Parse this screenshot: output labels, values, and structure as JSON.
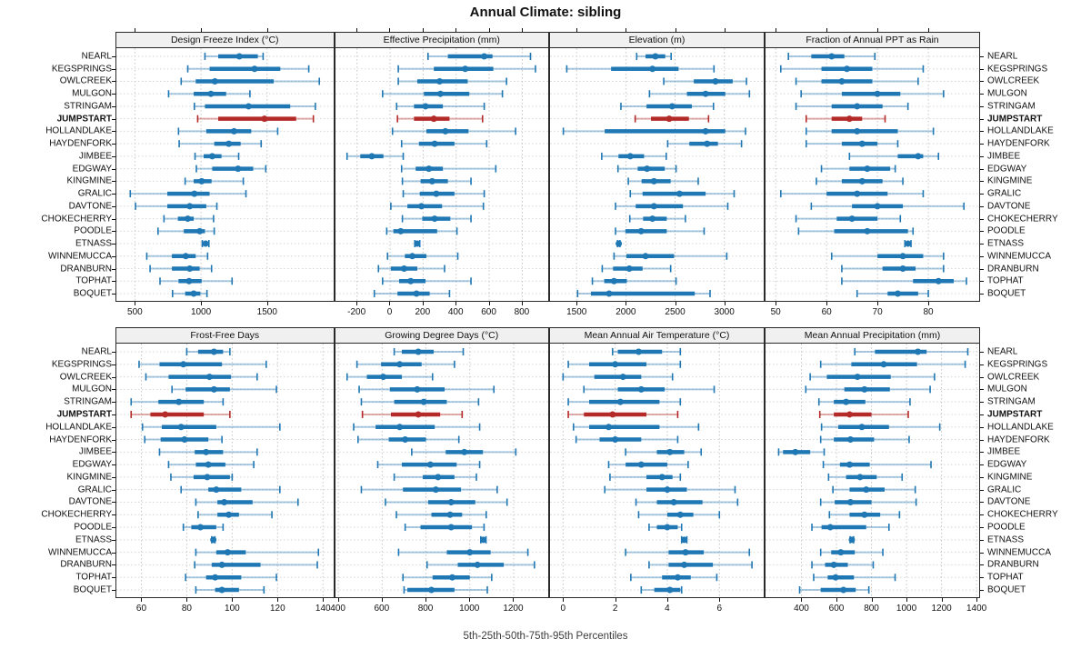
{
  "title": "Annual Climate: sibling",
  "footer": "5th-25th-50th-75th-95th Percentiles",
  "highlight_site": "JUMPSTART",
  "sites": [
    "NEARL",
    "KEGSPRINGS",
    "OWLCREEK",
    "MULGON",
    "STRINGAM",
    "JUMPSTART",
    "HOLLANDLAKE",
    "HAYDENFORK",
    "JIMBEE",
    "EDGWAY",
    "KINGMINE",
    "GRALIC",
    "DAVTONE",
    "CHOKECHERRY",
    "POODLE",
    "ETNASS",
    "WINNEMUCCA",
    "DRANBURN",
    "TOPHAT",
    "BOQUET"
  ],
  "colors": {
    "series": "#1f77b4",
    "series_light": "rgba(31,119,180,0.38)",
    "highlight": "#b32a28",
    "highlight_light": "rgba(179,42,40,0.38)",
    "grid": "#c6c6c6",
    "row_grid": "#d6d6d6",
    "header_bg": "#f0f0f0",
    "border": "#2a2a2a",
    "text": "#111111"
  },
  "chart_data": [
    {
      "type": "percentile-dotplot",
      "row": "top",
      "col": 0,
      "title": "Design Freeze Index (°C)",
      "xlim": [
        360,
        2000
      ],
      "ticks": [
        500,
        1000,
        1500
      ],
      "percentiles": [
        5,
        25,
        50,
        75,
        95
      ],
      "values": [
        [
          1030,
          1130,
          1290,
          1430,
          1470
        ],
        [
          900,
          1065,
          1405,
          1600,
          1815
        ],
        [
          850,
          960,
          1105,
          1550,
          1895
        ],
        [
          755,
          945,
          1075,
          1190,
          1370
        ],
        [
          950,
          1030,
          1360,
          1675,
          1865
        ],
        [
          975,
          1130,
          1480,
          1720,
          1850
        ],
        [
          830,
          1040,
          1250,
          1380,
          1580
        ],
        [
          835,
          1100,
          1210,
          1300,
          1455
        ],
        [
          955,
          1020,
          1085,
          1155,
          1285
        ],
        [
          965,
          1085,
          1280,
          1395,
          1490
        ],
        [
          880,
          945,
          1005,
          1080,
          1320
        ],
        [
          465,
          745,
          950,
          1065,
          1340
        ],
        [
          505,
          745,
          915,
          1040,
          1120
        ],
        [
          720,
          825,
          900,
          945,
          1095
        ],
        [
          675,
          870,
          990,
          1030,
          1100
        ],
        [
          1010,
          1025,
          1035,
          1045,
          1060
        ],
        [
          590,
          780,
          885,
          960,
          1050
        ],
        [
          615,
          780,
          915,
          990,
          1080
        ],
        [
          690,
          830,
          910,
          1005,
          1235
        ],
        [
          785,
          880,
          945,
          995,
          1045
        ]
      ]
    },
    {
      "type": "percentile-dotplot",
      "row": "top",
      "col": 1,
      "title": "Effective Precipitation (mm)",
      "xlim": [
        -330,
        960
      ],
      "ticks": [
        -200,
        0,
        200,
        400,
        600,
        800
      ],
      "percentiles": [
        5,
        25,
        50,
        75,
        95
      ],
      "values": [
        [
          230,
          350,
          570,
          620,
          850
        ],
        [
          50,
          265,
          455,
          625,
          880
        ],
        [
          50,
          165,
          300,
          470,
          705
        ],
        [
          -45,
          205,
          305,
          480,
          680
        ],
        [
          40,
          145,
          215,
          320,
          570
        ],
        [
          45,
          145,
          265,
          360,
          560
        ],
        [
          15,
          220,
          335,
          475,
          760
        ],
        [
          70,
          175,
          270,
          390,
          585
        ],
        [
          -260,
          -180,
          -110,
          -40,
          80
        ],
        [
          70,
          155,
          235,
          320,
          640
        ],
        [
          75,
          185,
          255,
          350,
          490
        ],
        [
          80,
          180,
          280,
          390,
          570
        ],
        [
          5,
          105,
          190,
          315,
          565
        ],
        [
          75,
          195,
          270,
          365,
          490
        ],
        [
          -20,
          20,
          65,
          285,
          405
        ],
        [
          150,
          158,
          164,
          170,
          180
        ],
        [
          -15,
          90,
          135,
          220,
          410
        ],
        [
          -70,
          5,
          85,
          165,
          330
        ],
        [
          -45,
          55,
          125,
          215,
          490
        ],
        [
          -95,
          45,
          160,
          240,
          360
        ]
      ]
    },
    {
      "type": "percentile-dotplot",
      "row": "top",
      "col": 2,
      "title": "Elevation (m)",
      "xlim": [
        1230,
        3400
      ],
      "ticks": [
        1500,
        2000,
        2500,
        3000
      ],
      "percentiles": [
        5,
        25,
        50,
        75,
        95
      ],
      "values": [
        [
          2110,
          2200,
          2300,
          2400,
          2460
        ],
        [
          1400,
          1850,
          2270,
          2535,
          2895
        ],
        [
          2385,
          2690,
          2910,
          3085,
          3225
        ],
        [
          2240,
          2620,
          2810,
          3010,
          3255
        ],
        [
          1950,
          2210,
          2470,
          2670,
          2890
        ],
        [
          2095,
          2255,
          2440,
          2640,
          2840
        ],
        [
          1365,
          1785,
          2810,
          3010,
          3215
        ],
        [
          2425,
          2645,
          2825,
          2935,
          3175
        ],
        [
          1755,
          1925,
          2045,
          2185,
          2410
        ],
        [
          1920,
          2120,
          2215,
          2395,
          2510
        ],
        [
          2025,
          2160,
          2285,
          2455,
          2735
        ],
        [
          2045,
          2170,
          2545,
          2810,
          3100
        ],
        [
          1895,
          2100,
          2285,
          2580,
          3035
        ],
        [
          2040,
          2175,
          2270,
          2415,
          2605
        ],
        [
          1895,
          1995,
          2155,
          2415,
          2795
        ],
        [
          1915,
          1922,
          1928,
          1934,
          1940
        ],
        [
          1880,
          2005,
          2200,
          2490,
          3025
        ],
        [
          1760,
          1870,
          2035,
          2170,
          2455
        ],
        [
          1660,
          1780,
          1880,
          2010,
          2510
        ],
        [
          1510,
          1645,
          1830,
          2700,
          2855
        ]
      ]
    },
    {
      "type": "percentile-dotplot",
      "row": "top",
      "col": 3,
      "title": "Fraction of Annual PPT as Rain",
      "xlim": [
        48,
        90
      ],
      "ticks": [
        50,
        60,
        70,
        80
      ],
      "percentiles": [
        5,
        25,
        50,
        75,
        95
      ],
      "values": [
        [
          52.5,
          57,
          61,
          63.5,
          69.5
        ],
        [
          51,
          59,
          64,
          69,
          79
        ],
        [
          54,
          59,
          63,
          69,
          78
        ],
        [
          55,
          63,
          70,
          74.5,
          83
        ],
        [
          54,
          61,
          66,
          71,
          76
        ],
        [
          56,
          61,
          64.5,
          67,
          71.5
        ],
        [
          56,
          61,
          66,
          74,
          81
        ],
        [
          56,
          63,
          67,
          70,
          74
        ],
        [
          64.5,
          74,
          78,
          79,
          82
        ],
        [
          59,
          64.5,
          68,
          72.5,
          73.5
        ],
        [
          58,
          63,
          67,
          71,
          75
        ],
        [
          51,
          60,
          66,
          72,
          79
        ],
        [
          57,
          65,
          70,
          75,
          87
        ],
        [
          54,
          62,
          65,
          70,
          74.5
        ],
        [
          54.5,
          61.5,
          68,
          76,
          77
        ],
        [
          75.4,
          75.7,
          76,
          76.3,
          76.6
        ],
        [
          61,
          70,
          75,
          79,
          83
        ],
        [
          63,
          71,
          75,
          77.5,
          83
        ],
        [
          63,
          77,
          82,
          85,
          87.5
        ],
        [
          66,
          72,
          74,
          78,
          80
        ]
      ]
    },
    {
      "type": "percentile-dotplot",
      "row": "bottom",
      "col": 0,
      "title": "Frost-Free Days",
      "xlim": [
        49,
        144.5
      ],
      "ticks": [
        60,
        80,
        100,
        120,
        140
      ],
      "percentiles": [
        5,
        25,
        50,
        75,
        95
      ],
      "values": [
        [
          80,
          85,
          92,
          96,
          99
        ],
        [
          59,
          68,
          78.5,
          95.5,
          115
        ],
        [
          62,
          72,
          90,
          99.5,
          111
        ],
        [
          73.5,
          79.5,
          92,
          99,
          119.5
        ],
        [
          55.5,
          67.5,
          76.5,
          87.5,
          96
        ],
        [
          55.5,
          64,
          70.5,
          87.5,
          99
        ],
        [
          60.5,
          69,
          77.5,
          93,
          121
        ],
        [
          61.5,
          68.5,
          79,
          89.5,
          95.5
        ],
        [
          68,
          83.5,
          88.5,
          96,
          111
        ],
        [
          72,
          84,
          89.5,
          97,
          109.5
        ],
        [
          73,
          83,
          89,
          99,
          100
        ],
        [
          77.5,
          89.5,
          93,
          104,
          121
        ],
        [
          84,
          93.5,
          96.5,
          109,
          129
        ],
        [
          85,
          93.5,
          98.5,
          103,
          117.5
        ],
        [
          78.5,
          82,
          86,
          93,
          96
        ],
        [
          91,
          91.4,
          91.7,
          92,
          92.4
        ],
        [
          84,
          93,
          98,
          106,
          138
        ],
        [
          83.5,
          91,
          95.5,
          112.5,
          137.5
        ],
        [
          79.5,
          88.5,
          92.5,
          104,
          119.5
        ],
        [
          84,
          92.5,
          95.5,
          103,
          114
        ]
      ]
    },
    {
      "type": "percentile-dotplot",
      "row": "bottom",
      "col": 1,
      "title": "Growing Degree Days (°C)",
      "xlim": [
        387,
        1360
      ],
      "ticks": [
        400,
        600,
        800,
        1000,
        1200
      ],
      "percentiles": [
        5,
        25,
        50,
        75,
        95
      ],
      "values": [
        [
          655,
          690,
          765,
          835,
          970
        ],
        [
          485,
          595,
          680,
          780,
          930
        ],
        [
          440,
          530,
          605,
          690,
          830
        ],
        [
          495,
          635,
          760,
          885,
          1110
        ],
        [
          505,
          655,
          790,
          895,
          1040
        ],
        [
          510,
          640,
          765,
          865,
          965
        ],
        [
          470,
          570,
          680,
          840,
          1045
        ],
        [
          490,
          630,
          705,
          800,
          950
        ],
        [
          735,
          890,
          975,
          1060,
          1210
        ],
        [
          580,
          690,
          820,
          940,
          1045
        ],
        [
          655,
          785,
          855,
          930,
          1030
        ],
        [
          505,
          695,
          845,
          960,
          1125
        ],
        [
          615,
          810,
          915,
          1025,
          1170
        ],
        [
          665,
          825,
          910,
          965,
          1075
        ],
        [
          705,
          775,
          915,
          1010,
          1065
        ],
        [
          1050,
          1056,
          1062,
          1068,
          1074
        ],
        [
          675,
          895,
          1000,
          1095,
          1265
        ],
        [
          805,
          945,
          1035,
          1155,
          1295
        ],
        [
          695,
          830,
          920,
          1000,
          1100
        ],
        [
          700,
          715,
          825,
          930,
          1080
        ]
      ]
    },
    {
      "type": "percentile-dotplot",
      "row": "bottom",
      "col": 2,
      "title": "Mean Annual Air Temperature (°C)",
      "xlim": [
        -0.5,
        7.7
      ],
      "ticks": [
        0,
        2,
        4,
        6
      ],
      "percentiles": [
        5,
        25,
        50,
        75,
        95
      ],
      "values": [
        [
          1.9,
          2.1,
          2.9,
          3.8,
          4.5
        ],
        [
          0.2,
          1.0,
          2.0,
          3.2,
          4.5
        ],
        [
          0,
          1.2,
          2.3,
          3.0,
          4.2
        ],
        [
          0.8,
          2.1,
          3.0,
          3.9,
          5.8
        ],
        [
          0.2,
          1.0,
          2.2,
          3.7,
          4.5
        ],
        [
          0.2,
          0.8,
          1.9,
          3.2,
          4.4
        ],
        [
          0.4,
          1.0,
          1.75,
          3.7,
          5.2
        ],
        [
          0.5,
          1.4,
          2.0,
          3.0,
          4.4
        ],
        [
          2.4,
          3.6,
          4.1,
          4.65,
          5.3
        ],
        [
          1.75,
          2.4,
          3.0,
          4.0,
          4.8
        ],
        [
          1.8,
          3.2,
          3.8,
          4.2,
          4.5
        ],
        [
          1.6,
          3.2,
          4.0,
          4.75,
          6.6
        ],
        [
          2.8,
          3.6,
          4.25,
          5.35,
          6.7
        ],
        [
          2.9,
          4.0,
          4.5,
          5.0,
          6.0
        ],
        [
          3.3,
          3.6,
          4.0,
          4.4,
          4.55
        ],
        [
          4.55,
          4.6,
          4.65,
          4.7,
          4.75
        ],
        [
          2.4,
          4.05,
          4.7,
          5.4,
          7.15
        ],
        [
          3.3,
          4.05,
          4.65,
          5.75,
          7.25
        ],
        [
          2.6,
          3.8,
          4.4,
          4.9,
          5.9
        ],
        [
          3.0,
          3.5,
          4.1,
          4.5,
          4.55
        ]
      ]
    },
    {
      "type": "percentile-dotplot",
      "row": "bottom",
      "col": 3,
      "title": "Mean Annual Precipitation (mm)",
      "xlim": [
        195,
        1415
      ],
      "ticks": [
        400,
        600,
        800,
        1000,
        1200,
        1400
      ],
      "percentiles": [
        5,
        25,
        50,
        75,
        95
      ],
      "values": [
        [
          705,
          820,
          1065,
          1115,
          1350
        ],
        [
          510,
          685,
          870,
          1060,
          1335
        ],
        [
          450,
          545,
          720,
          910,
          1160
        ],
        [
          425,
          645,
          760,
          905,
          1135
        ],
        [
          500,
          585,
          655,
          765,
          1020
        ],
        [
          505,
          585,
          675,
          800,
          1010
        ],
        [
          515,
          610,
          745,
          900,
          1190
        ],
        [
          510,
          585,
          680,
          815,
          1015
        ],
        [
          270,
          295,
          365,
          450,
          530
        ],
        [
          525,
          620,
          675,
          790,
          1140
        ],
        [
          555,
          655,
          735,
          830,
          975
        ],
        [
          580,
          675,
          770,
          875,
          1050
        ],
        [
          510,
          590,
          680,
          800,
          1055
        ],
        [
          560,
          675,
          760,
          850,
          960
        ],
        [
          460,
          515,
          565,
          770,
          900
        ],
        [
          678,
          683,
          688,
          693,
          698
        ],
        [
          510,
          570,
          625,
          705,
          865
        ],
        [
          460,
          535,
          585,
          665,
          810
        ],
        [
          470,
          550,
          595,
          700,
          935
        ],
        [
          390,
          510,
          640,
          710,
          785
        ]
      ]
    }
  ]
}
